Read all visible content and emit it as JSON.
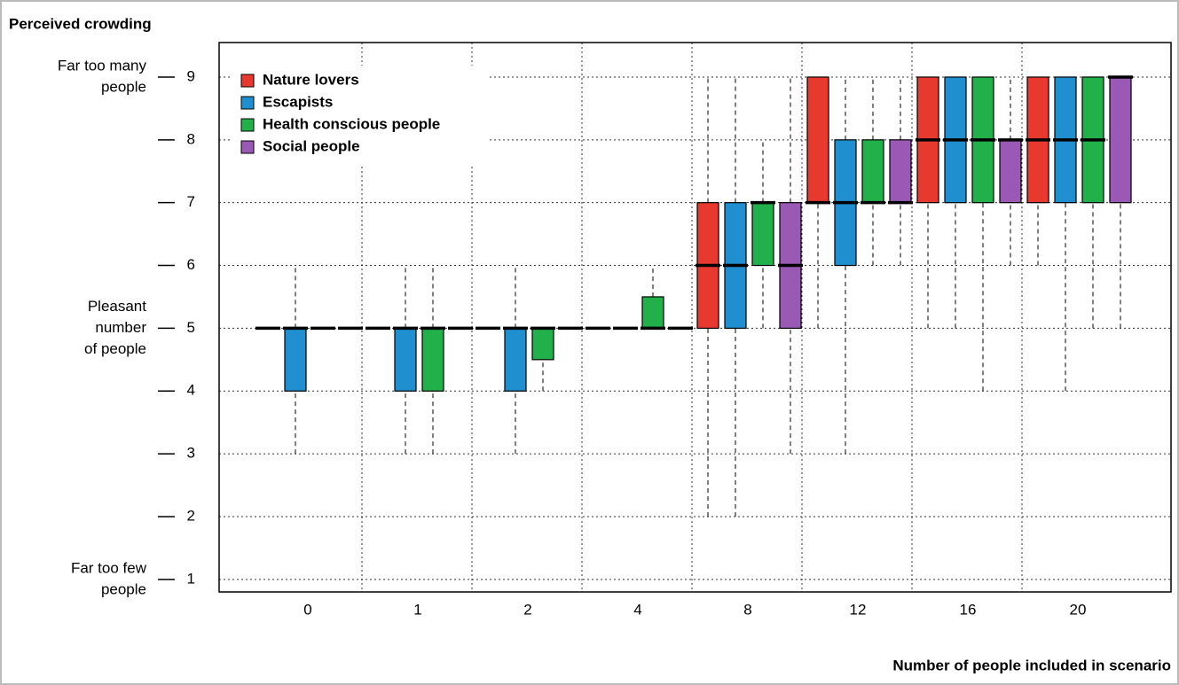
{
  "chart_data": {
    "type": "boxplot",
    "title": "Perceived crowding",
    "x_label": "Number of people included in scenario",
    "categories": [
      "0",
      "1",
      "2",
      "4",
      "8",
      "12",
      "16",
      "20"
    ],
    "ylim": [
      0.8,
      9.55
    ],
    "yticks": [
      1,
      2,
      3,
      4,
      5,
      6,
      7,
      8,
      9
    ],
    "y_annotations": [
      {
        "value": 9,
        "lines": [
          "Far too many",
          "people"
        ]
      },
      {
        "value": 5,
        "lines": [
          "Pleasant",
          "number",
          "of people"
        ]
      },
      {
        "value": 1,
        "lines": [
          "Far too few",
          "people"
        ]
      }
    ],
    "grid": true,
    "legend": "top-left",
    "series": [
      {
        "name": "Nature lovers",
        "color": "#e8392e",
        "values": [
          [
            5,
            5,
            5,
            5,
            5
          ],
          [
            5,
            5,
            5,
            5,
            5
          ],
          [
            5,
            5,
            5,
            5,
            5
          ],
          [
            5,
            5,
            5,
            5,
            5
          ],
          [
            2,
            5,
            6,
            7,
            9
          ],
          [
            5,
            7,
            7,
            9,
            9
          ],
          [
            5,
            7,
            8,
            9,
            9
          ],
          [
            6,
            7,
            8,
            9,
            9
          ]
        ]
      },
      {
        "name": "Escapists",
        "color": "#1f8fd0",
        "values": [
          [
            3,
            4,
            5,
            5,
            6
          ],
          [
            3,
            4,
            5,
            5,
            6
          ],
          [
            3,
            4,
            5,
            5,
            6
          ],
          [
            5,
            5,
            5,
            5,
            5
          ],
          [
            2,
            5,
            6,
            7,
            9
          ],
          [
            3,
            6,
            7,
            8,
            9
          ],
          [
            5,
            7,
            8,
            9,
            9
          ],
          [
            4,
            7,
            8,
            9,
            9
          ]
        ]
      },
      {
        "name": "Health conscious people",
        "color": "#22b04b",
        "values": [
          [
            5,
            5,
            5,
            5,
            5
          ],
          [
            3,
            4,
            5,
            5,
            6
          ],
          [
            4,
            4.5,
            5,
            5,
            5
          ],
          [
            5,
            5,
            5,
            5.5,
            6
          ],
          [
            5,
            6,
            7,
            7,
            8
          ],
          [
            6,
            7,
            7,
            8,
            9
          ],
          [
            4,
            7,
            8,
            9,
            9
          ],
          [
            5,
            7,
            8,
            9,
            9
          ]
        ]
      },
      {
        "name": "Social people",
        "color": "#9b59b6",
        "values": [
          [
            5,
            5,
            5,
            5,
            5
          ],
          [
            5,
            5,
            5,
            5,
            5
          ],
          [
            5,
            5,
            5,
            5,
            5
          ],
          [
            5,
            5,
            5,
            5,
            5
          ],
          [
            3,
            5,
            6,
            7,
            9
          ],
          [
            6,
            7,
            7,
            8,
            9
          ],
          [
            6,
            7,
            8,
            8,
            9
          ],
          [
            5,
            7,
            9,
            9,
            9
          ]
        ]
      }
    ]
  }
}
